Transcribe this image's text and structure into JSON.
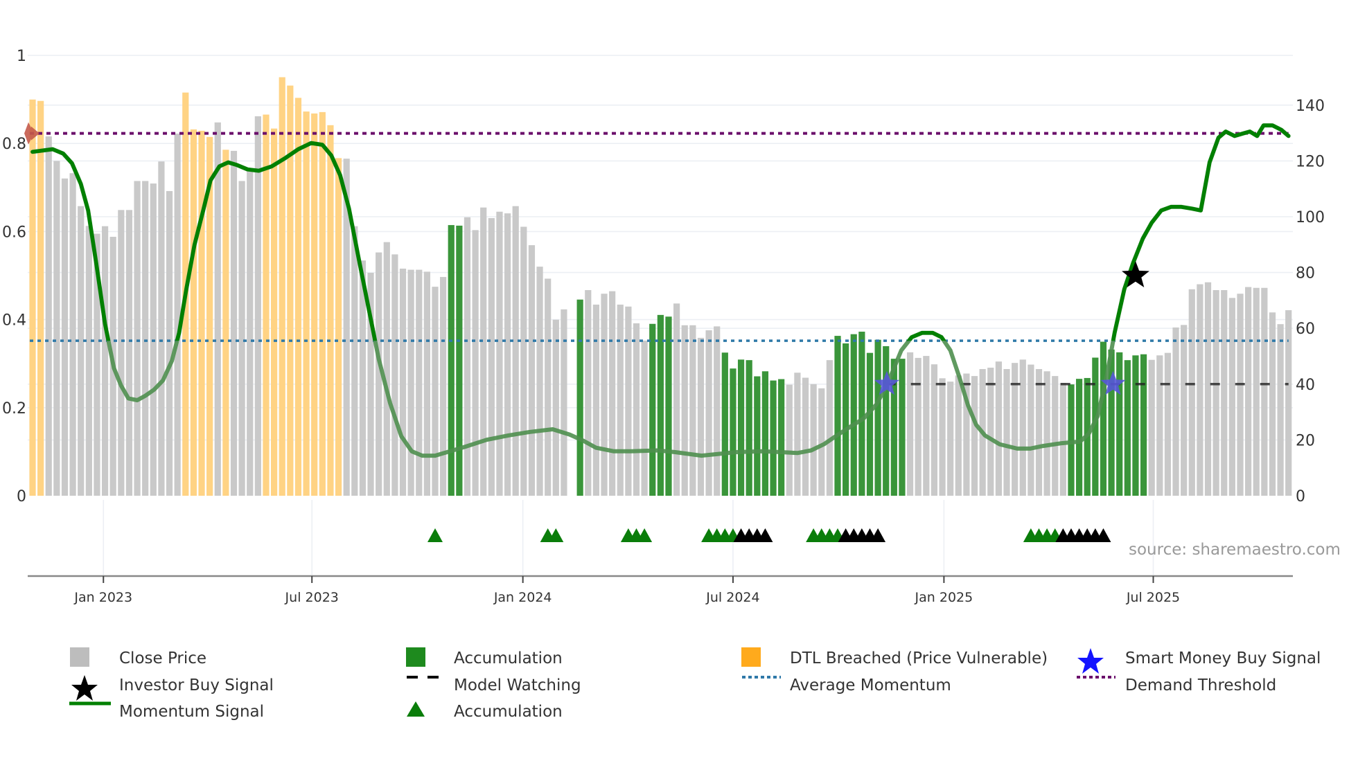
{
  "chart_data": {
    "type": "bar",
    "title": "",
    "xlabel": "",
    "ylabel_left": "",
    "ylabel_right": "",
    "left_axis": {
      "range": [
        0,
        1
      ],
      "ticks": [
        "0",
        "0.2",
        "0.4",
        "0.6",
        "0.8",
        "1"
      ],
      "tick_values": [
        0,
        0.2,
        0.4,
        0.6,
        0.8,
        1
      ]
    },
    "right_axis": {
      "range": [
        0,
        157.9
      ],
      "ticks": [
        "0",
        "20",
        "40",
        "60",
        "80",
        "100",
        "120",
        "140"
      ],
      "tick_values": [
        0,
        20,
        40,
        60,
        80,
        100,
        120,
        140
      ]
    },
    "x_ticks": [
      {
        "label": "Jan 2023",
        "week": 8.8
      },
      {
        "label": "Jul 2023",
        "week": 34.7
      },
      {
        "label": "Jan 2024",
        "week": 60.9
      },
      {
        "label": "Jul 2024",
        "week": 87.0
      },
      {
        "label": "Jan 2025",
        "week": 113.2
      },
      {
        "label": "Jul 2025",
        "week": 139.2
      }
    ],
    "grid": true,
    "close_price": [
      142,
      141.5,
      128.8,
      120,
      113.7,
      115.6,
      103.8,
      96.7,
      93.9,
      96.6,
      92.8,
      102.4,
      102.4,
      112.8,
      112.8,
      111.9,
      119.8,
      109.2,
      129.8,
      144.5,
      131.3,
      130.8,
      128.6,
      133.8,
      124,
      123.6,
      112.8,
      116.3,
      136,
      136.6,
      131.6,
      150,
      147,
      142.6,
      137.7,
      137,
      137.5,
      132.8,
      121,
      120.8,
      96.6,
      84.3,
      79.9,
      87.2,
      90.9,
      86.5,
      81.4,
      81,
      81,
      80.3,
      74.9,
      78.4,
      97,
      96.8,
      99.8,
      95.2,
      103.3,
      99.5,
      101.8,
      101.2,
      103.8,
      96.4,
      89.8,
      82.1,
      77.8,
      63.1,
      66.8,
      null,
      70.3,
      73.7,
      68.5,
      72.4,
      73.3,
      68.5,
      67.8,
      61.8,
      55.6,
      61.6,
      64.8,
      64.2,
      68.9,
      61.1,
      61.1,
      56.6,
      59.3,
      60.7,
      51.3,
      45.6,
      48.8,
      48.6,
      42.8,
      44.6,
      41.3,
      41.8,
      39.8,
      44.1,
      42.3,
      40,
      38.5,
      48.6,
      57.3,
      54.6,
      57.9,
      58.8,
      51.2,
      55.9,
      53.6,
      49.1,
      49.1,
      51.4,
      49.4,
      50.1,
      47.1,
      42.1,
      40.9,
      43.1,
      43.8,
      42.9,
      45.4,
      45.9,
      48.1,
      45.4,
      47.6,
      48.8,
      47,
      45.4,
      44.6,
      42.9,
      40.4,
      39.9,
      41.9,
      42.2,
      49.5,
      55.2,
      52.4,
      51.4,
      48.6,
      50.3,
      50.7,
      48.7,
      50.3,
      51.2,
      60.3,
      61.2,
      74,
      75.8,
      76.5,
      73.7,
      73.7,
      70.9,
      72.4,
      74.8,
      74.5,
      74.5,
      65.7,
      61.5,
      66.5
    ],
    "bar_state": "ddpppppppppppppppppddddpdppppddddddddddpppppppppppppaapppppppppppppaappppppppaaappppppaaaaaaaappppppaaaaaaaaappppppppppppppppppppaaaaaaaaaappppppppppppppppppppppp",
    "bar_state_legend": {
      "p": "Close Price",
      "a": "Accumulation",
      "d": "DTL Breached (Price Vulnerable)"
    },
    "momentum_signal": [
      [
        0,
        0.781
      ],
      [
        2.5,
        0.787
      ],
      [
        3.8,
        0.777
      ],
      [
        4.9,
        0.755
      ],
      [
        6.0,
        0.708
      ],
      [
        6.9,
        0.648
      ],
      [
        7.9,
        0.529
      ],
      [
        9.0,
        0.39
      ],
      [
        10.1,
        0.29
      ],
      [
        11.0,
        0.25
      ],
      [
        11.9,
        0.221
      ],
      [
        13.0,
        0.217
      ],
      [
        14.0,
        0.227
      ],
      [
        15.1,
        0.241
      ],
      [
        16.2,
        0.262
      ],
      [
        17.3,
        0.306
      ],
      [
        18.2,
        0.37
      ],
      [
        19.1,
        0.469
      ],
      [
        20.1,
        0.569
      ],
      [
        21.2,
        0.648
      ],
      [
        22.1,
        0.716
      ],
      [
        23.2,
        0.748
      ],
      [
        24.3,
        0.757
      ],
      [
        25.4,
        0.751
      ],
      [
        26.7,
        0.741
      ],
      [
        28.1,
        0.738
      ],
      [
        29.7,
        0.748
      ],
      [
        31.4,
        0.767
      ],
      [
        33.0,
        0.787
      ],
      [
        34.6,
        0.801
      ],
      [
        36.0,
        0.797
      ],
      [
        37.1,
        0.773
      ],
      [
        38.2,
        0.728
      ],
      [
        39.3,
        0.652
      ],
      [
        40.4,
        0.549
      ],
      [
        41.7,
        0.429
      ],
      [
        43.0,
        0.31
      ],
      [
        44.4,
        0.211
      ],
      [
        45.8,
        0.135
      ],
      [
        47.1,
        0.101
      ],
      [
        48.4,
        0.091
      ],
      [
        50.0,
        0.091
      ],
      [
        51.5,
        0.099
      ],
      [
        53.7,
        0.111
      ],
      [
        56.4,
        0.127
      ],
      [
        59.1,
        0.137
      ],
      [
        61.8,
        0.145
      ],
      [
        64.6,
        0.151
      ],
      [
        66.7,
        0.139
      ],
      [
        68.4,
        0.125
      ],
      [
        70.0,
        0.109
      ],
      [
        72.2,
        0.101
      ],
      [
        74.4,
        0.101
      ],
      [
        77.6,
        0.103
      ],
      [
        79.8,
        0.099
      ],
      [
        83.1,
        0.091
      ],
      [
        85.2,
        0.095
      ],
      [
        87.4,
        0.099
      ],
      [
        90.7,
        0.101
      ],
      [
        92.9,
        0.099
      ],
      [
        95.0,
        0.097
      ],
      [
        96.7,
        0.103
      ],
      [
        98.3,
        0.117
      ],
      [
        99.9,
        0.137
      ],
      [
        101.6,
        0.157
      ],
      [
        103.2,
        0.175
      ],
      [
        104.8,
        0.207
      ],
      [
        106.1,
        0.25
      ],
      [
        107.0,
        0.29
      ],
      [
        107.9,
        0.33
      ],
      [
        109.2,
        0.36
      ],
      [
        110.5,
        0.37
      ],
      [
        111.8,
        0.37
      ],
      [
        112.9,
        0.36
      ],
      [
        114.0,
        0.33
      ],
      [
        115.1,
        0.27
      ],
      [
        116.2,
        0.205
      ],
      [
        117.2,
        0.161
      ],
      [
        118.3,
        0.137
      ],
      [
        120.1,
        0.117
      ],
      [
        122.3,
        0.107
      ],
      [
        123.9,
        0.107
      ],
      [
        125.5,
        0.113
      ],
      [
        127.7,
        0.119
      ],
      [
        130.1,
        0.123
      ],
      [
        131.2,
        0.141
      ],
      [
        132.3,
        0.181
      ],
      [
        133.4,
        0.27
      ],
      [
        134.4,
        0.37
      ],
      [
        135.6,
        0.469
      ],
      [
        136.7,
        0.529
      ],
      [
        137.9,
        0.584
      ],
      [
        139.0,
        0.62
      ],
      [
        140.2,
        0.648
      ],
      [
        141.4,
        0.656
      ],
      [
        142.7,
        0.656
      ],
      [
        144.0,
        0.652
      ],
      [
        145.1,
        0.648
      ],
      [
        146.2,
        0.757
      ],
      [
        147.3,
        0.813
      ],
      [
        148.2,
        0.827
      ],
      [
        149.3,
        0.817
      ],
      [
        150.4,
        0.823
      ],
      [
        151.2,
        0.827
      ],
      [
        152.1,
        0.817
      ],
      [
        152.9,
        0.841
      ],
      [
        154.0,
        0.841
      ],
      [
        155.1,
        0.831
      ],
      [
        156.0,
        0.817
      ]
    ],
    "average_momentum": 0.352,
    "demand_threshold": 0.823,
    "model_watching": {
      "price": 40,
      "from_week": 106,
      "to_week": 156
    },
    "smart_money_buy_signals": [
      {
        "week": 106.1,
        "price": 40
      },
      {
        "week": 134.2,
        "price": 40
      }
    ],
    "investor_buy_signals": [
      {
        "week": 137.0,
        "momentum": 0.5
      }
    ],
    "threshold_marker": {
      "week": 0,
      "value": 0.823
    },
    "accumulation_markers": {
      "green": [
        50,
        64,
        65,
        74,
        75,
        76,
        84,
        85,
        86,
        87,
        97,
        98,
        99,
        100,
        124,
        125,
        126,
        127
      ],
      "black": [
        88,
        89,
        90,
        91,
        101,
        102,
        103,
        104,
        105,
        128,
        129,
        130,
        131,
        132,
        133
      ]
    },
    "legend_placement": "bottom"
  },
  "colors": {
    "close_price": "#c9c9c9",
    "accumulation": "#2f8f2f",
    "dtl_breached": "#ffd384",
    "dtl_legend": "#ffaa1c",
    "momentum": "#008000",
    "momentum_muted": "#4f8f4f",
    "average_momentum": "#2f79a8",
    "demand_threshold": "#6b0f6b",
    "smart_money": "#1414ff",
    "smart_money_plot": "#5656d8",
    "investor": "#000000",
    "threshold_marker": "#c45a4a"
  },
  "source": "source: sharemaestro.com",
  "legend": [
    {
      "label": "Close Price",
      "icon": "gray-square-icon"
    },
    {
      "label": "Accumulation",
      "icon": "green-square-icon"
    },
    {
      "label": "DTL Breached (Price Vulnerable)",
      "icon": "orange-square-icon"
    },
    {
      "label": "Smart Money Buy Signal",
      "icon": "blue-star-icon"
    },
    {
      "label": "Investor Buy Signal",
      "icon": "black-star-icon"
    },
    {
      "label": "Model Watching",
      "icon": "dashed-line-icon"
    },
    {
      "label": "Average Momentum",
      "icon": "blue-dotted-line-icon"
    },
    {
      "label": "Demand Threshold",
      "icon": "purple-dotted-line-icon"
    },
    {
      "label": "Momentum Signal",
      "icon": "green-line-icon"
    },
    {
      "label": "Accumulation",
      "icon": "green-triangle-icon"
    }
  ]
}
